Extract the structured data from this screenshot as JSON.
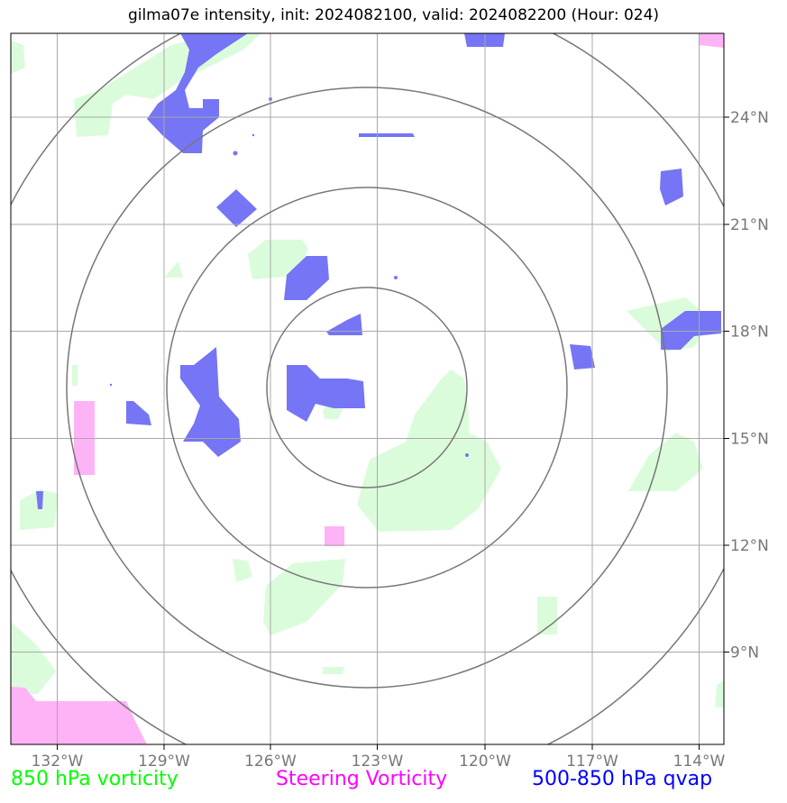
{
  "title": "gilma07e intensity, init: 2024082100, valid: 2024082200 (Hour: 024)",
  "x_ticks": [
    "132°W",
    "129°W",
    "126°W",
    "123°W",
    "120°W",
    "117°W",
    "114°W"
  ],
  "y_ticks": [
    "24°N",
    "21°N",
    "18°N",
    "15°N",
    "12°N",
    "9°N"
  ],
  "legend": {
    "green_label": "850 hPa vorticity",
    "magenta_label": "Steering Vorticity",
    "blue_label": "500-850 hPa qvap"
  },
  "colors": {
    "green": "#00ff00",
    "magenta": "#ff00ff",
    "blue": "#0000ff",
    "green_fill": "#dbfcdb",
    "magenta_fill": "#ffb3f7",
    "blue_fill": "#7575f5",
    "grid": "#a8a8a8",
    "range_rings": "#777777"
  },
  "map": {
    "projection": "plate-carree",
    "lon_range": [
      -133.3,
      -113.3
    ],
    "lat_range": [
      6.9,
      26.8
    ],
    "grid": true,
    "storm_center": {
      "lon": -123,
      "lat": 16.5
    },
    "range_rings": 4
  }
}
